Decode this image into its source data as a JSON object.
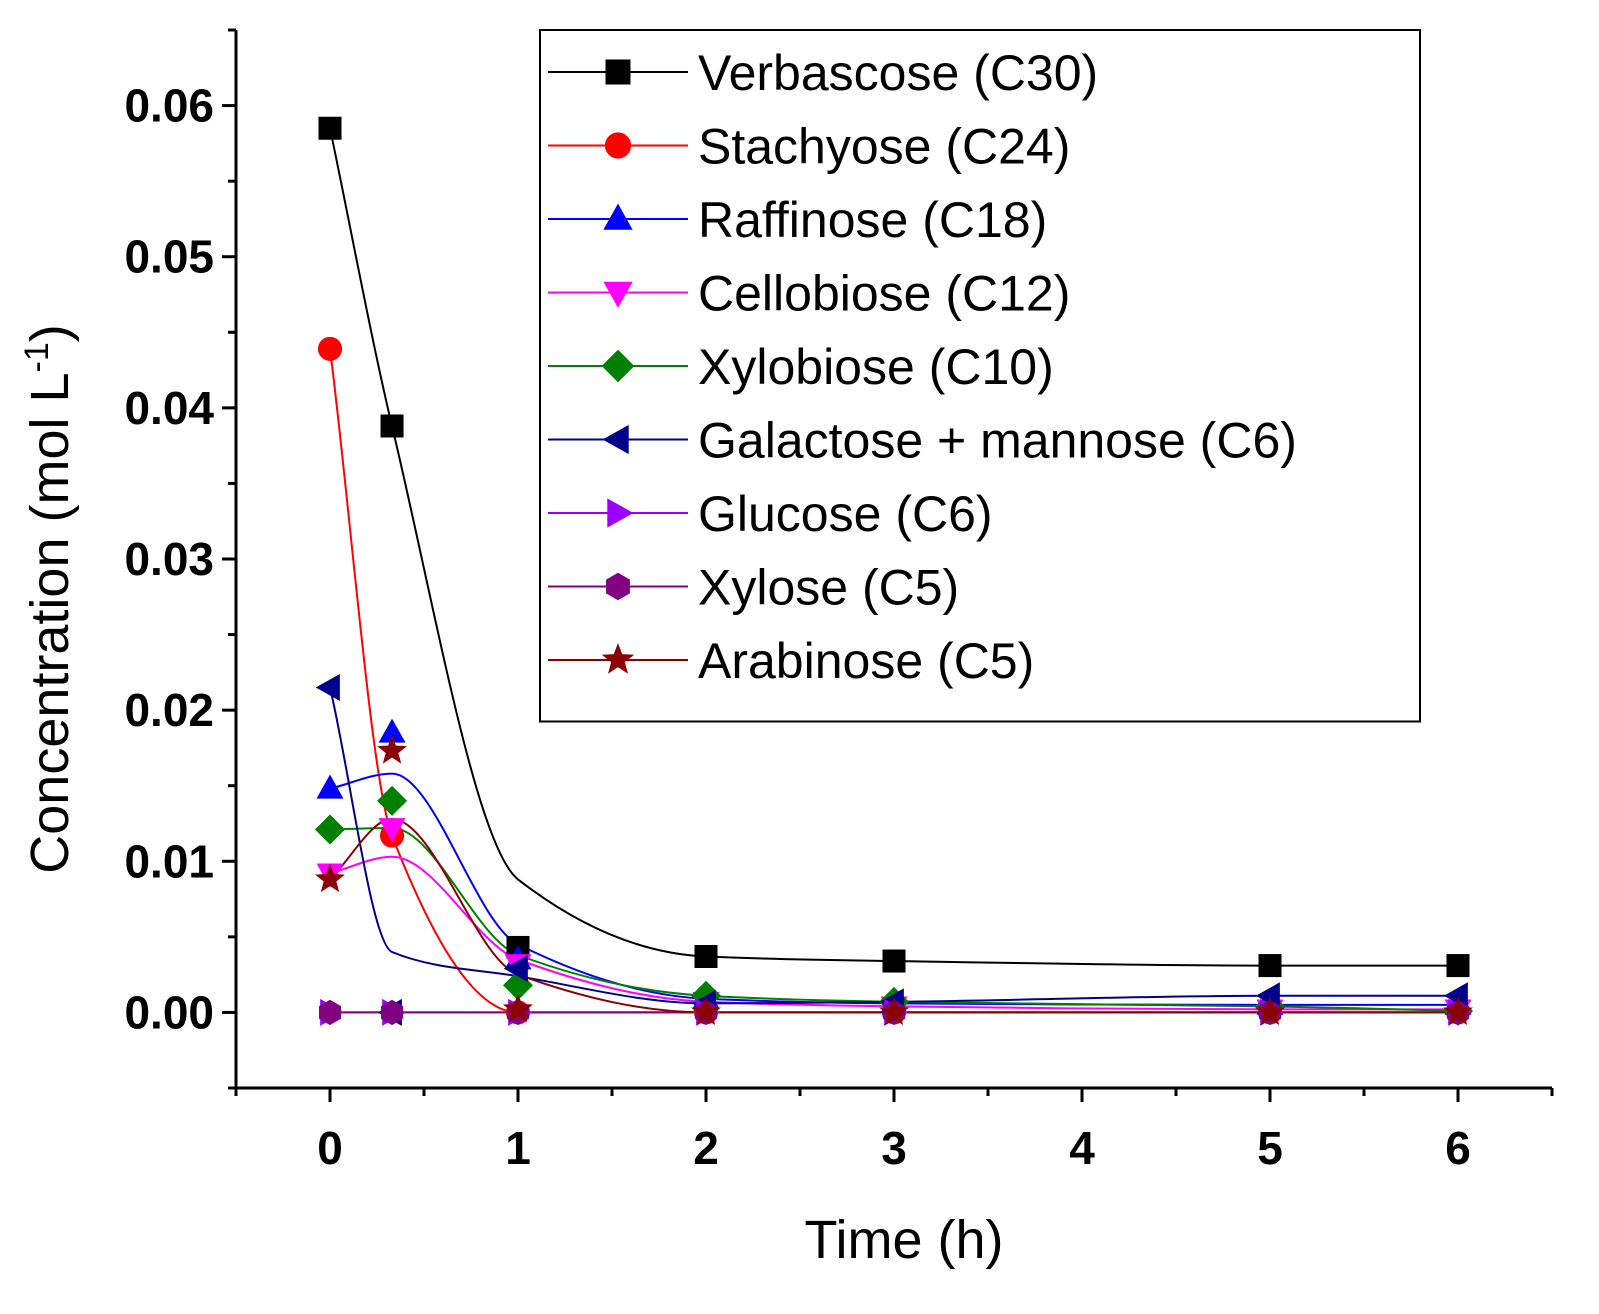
{
  "chart_data": {
    "type": "line",
    "xlabel": "Time (h)",
    "ylabel": "Concentration (mol L",
    "ylabel_superscript": "-1",
    "ylabel_close": ")",
    "xlim": [
      -0.5,
      6.5
    ],
    "ylim": [
      -0.005,
      0.065
    ],
    "xticks": [
      "0",
      "1",
      "2",
      "3",
      "4",
      "5",
      "6"
    ],
    "yticks": [
      "0.00",
      "0.01",
      "0.02",
      "0.03",
      "0.04",
      "0.05",
      "0.06"
    ],
    "legend_position": "top-right",
    "series": [
      {
        "name": "Verbascose (C30)",
        "color": "#000000",
        "marker": "square",
        "x": [
          0,
          0.33,
          1,
          2,
          3,
          5,
          6
        ],
        "y": [
          0.0585,
          0.0388,
          0.0043,
          0.0037,
          0.0034,
          0.0031,
          0.0031
        ],
        "fit_y": [
          0.0585,
          0.0388,
          0.0088,
          0.0037,
          0.0034,
          0.0031,
          0.0031
        ]
      },
      {
        "name": "Stachyose (C24)",
        "color": "#ff0000",
        "marker": "circle",
        "x": [
          0,
          0.33,
          1,
          2,
          3,
          5,
          6
        ],
        "y": [
          0.0439,
          0.0117,
          0.0,
          0.0,
          0.0,
          0.0,
          0.0
        ],
        "fit_y": [
          0.0439,
          0.0117,
          0.0,
          0.0,
          0.0,
          0.0,
          0.0
        ]
      },
      {
        "name": "Raffinose (C18)",
        "color": "#0000ff",
        "marker": "triangle-up",
        "x": [
          0,
          0.33,
          1,
          2,
          3,
          5,
          6
        ],
        "y": [
          0.0148,
          0.0185,
          0.0035,
          0.0009,
          0.0006,
          0.0005,
          0.0005
        ],
        "fit_y": [
          0.0148,
          0.0158,
          0.0045,
          0.0009,
          0.0006,
          0.0005,
          0.0005
        ]
      },
      {
        "name": "Cellobiose (C12)",
        "color": "#ff00ff",
        "marker": "triangle-down",
        "x": [
          0,
          0.33,
          1,
          2,
          3,
          5,
          6
        ],
        "y": [
          0.0092,
          0.0122,
          0.0032,
          0.0007,
          0.0004,
          0.0002,
          0.0002
        ],
        "fit_y": [
          0.0092,
          0.0103,
          0.0035,
          0.0007,
          0.0004,
          0.0002,
          0.0002
        ]
      },
      {
        "name": "Xylobiose (C10)",
        "color": "#008000",
        "marker": "diamond",
        "x": [
          0,
          0.33,
          1,
          2,
          3,
          5,
          6
        ],
        "y": [
          0.0121,
          0.014,
          0.0018,
          0.0011,
          0.0007,
          0.0004,
          0.0001
        ],
        "fit_y": [
          0.0121,
          0.0122,
          0.0038,
          0.0011,
          0.0007,
          0.0004,
          0.0001
        ]
      },
      {
        "name": "Galactose + mannose (C6)",
        "color": "#00008b",
        "marker": "triangle-left",
        "x": [
          0,
          0.33,
          1,
          2,
          3,
          5,
          6
        ],
        "y": [
          0.0215,
          0.0,
          0.0029,
          0.0006,
          0.0007,
          0.0011,
          0.0011
        ],
        "fit_y": [
          0.0215,
          0.004,
          0.0024,
          0.0006,
          0.0007,
          0.0011,
          0.0011
        ]
      },
      {
        "name": "Glucose (C6)",
        "color": "#9b00ff",
        "marker": "triangle-right",
        "x": [
          0,
          0.33,
          1,
          2,
          3,
          5,
          6
        ],
        "y": [
          0.0,
          0.0,
          0.0,
          0.0,
          0.0,
          0.0,
          0.0
        ],
        "fit_y": [
          0.0,
          0.0,
          0.0,
          0.0,
          0.0,
          0.0,
          0.0
        ]
      },
      {
        "name": "Xylose (C5)",
        "color": "#800080",
        "marker": "hexagon",
        "x": [
          0,
          0.33,
          1,
          2,
          3,
          5,
          6
        ],
        "y": [
          0.0,
          0.0,
          0.0,
          0.0,
          0.0,
          0.0,
          0.0
        ],
        "fit_y": [
          0.0,
          0.0,
          0.0,
          0.0,
          0.0,
          0.0,
          0.0
        ]
      },
      {
        "name": "Arabinose (C5)",
        "color": "#8b0000",
        "marker": "star",
        "x": [
          0,
          0.33,
          1,
          2,
          3,
          5,
          6
        ],
        "y": [
          0.0088,
          0.0173,
          0.0002,
          0.0,
          0.0,
          0.0,
          0.0
        ],
        "fit_y": [
          0.0088,
          0.0128,
          0.0025,
          0.0,
          0.0,
          0.0,
          0.0
        ]
      }
    ]
  }
}
